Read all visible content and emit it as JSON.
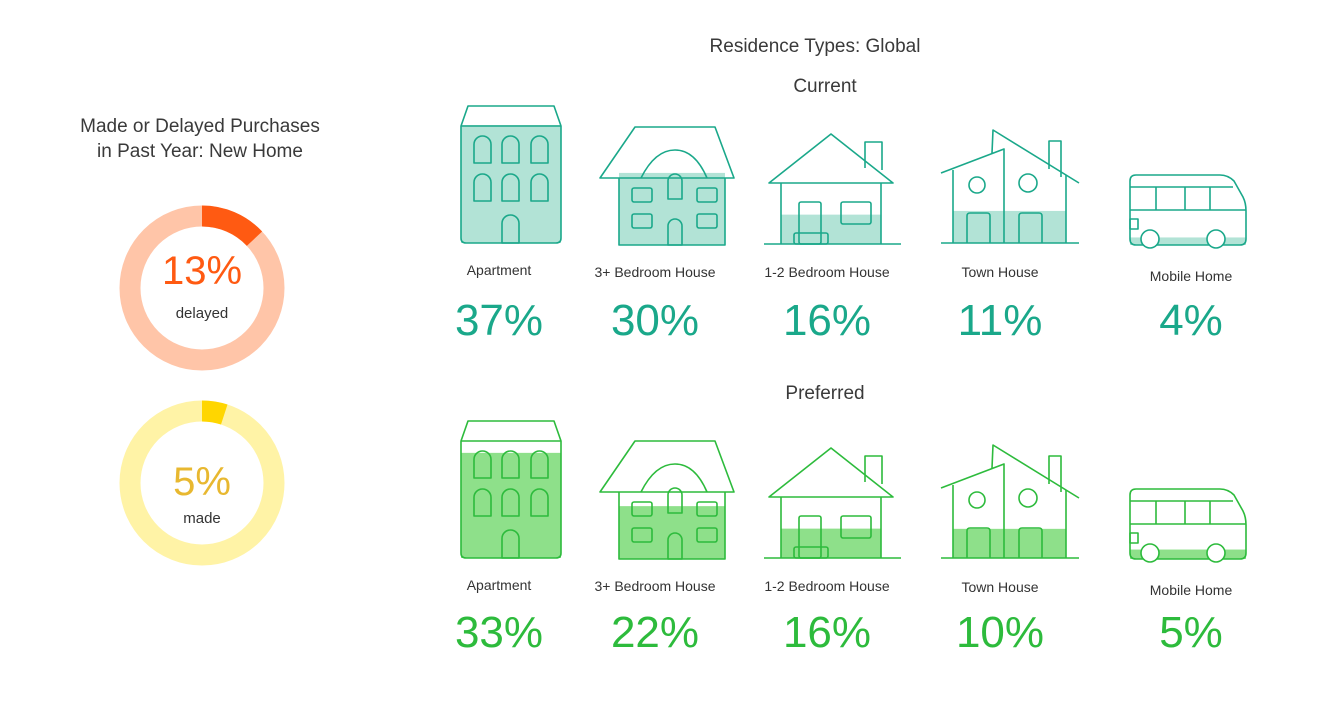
{
  "left_panel": {
    "title_line1": "Made or Delayed Purchases",
    "title_line2": "in Past Year: New Home",
    "delayed": {
      "value": 13,
      "label": "13%",
      "caption": "delayed",
      "color": "#ff5a12",
      "track": "#ffc5a8",
      "text_color": "#ff5a12"
    },
    "made": {
      "value": 5,
      "label": "5%",
      "caption": "made",
      "color": "#ffd600",
      "track": "#fff3a6",
      "text_color": "#e8b830"
    }
  },
  "right_panel": {
    "title": "Residence Types: Global",
    "current_label": "Current",
    "preferred_label": "Preferred"
  },
  "colors": {
    "current": "#1aa88a",
    "current_fill": "#b2e3d6",
    "preferred": "#2dbb3c",
    "preferred_fill": "#8ee08a"
  },
  "chart_data": {
    "type": "bar",
    "title": "Residence Types: Global",
    "categories": [
      "Apartment",
      "3+ Bedroom House",
      "1-2 Bedroom House",
      "Town House",
      "Mobile Home"
    ],
    "icons": [
      "apartment-icon",
      "large-house-icon",
      "small-house-icon",
      "town-house-icon",
      "mobile-home-icon"
    ],
    "series": [
      {
        "name": "Current",
        "values": [
          37,
          30,
          16,
          11,
          4
        ],
        "labels": [
          "37%",
          "30%",
          "16%",
          "11%",
          "4%"
        ]
      },
      {
        "name": "Preferred",
        "values": [
          33,
          22,
          16,
          10,
          5
        ],
        "labels": [
          "33%",
          "22%",
          "16%",
          "10%",
          "5%"
        ]
      }
    ],
    "unit": "%"
  }
}
